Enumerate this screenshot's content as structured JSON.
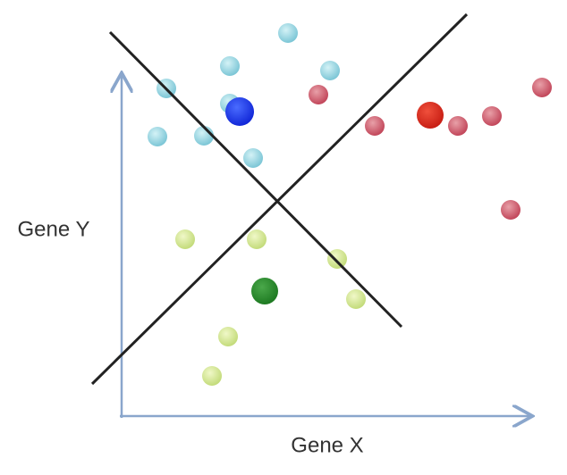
{
  "axes": {
    "x_label": "Gene X",
    "y_label": "Gene Y"
  }
}
